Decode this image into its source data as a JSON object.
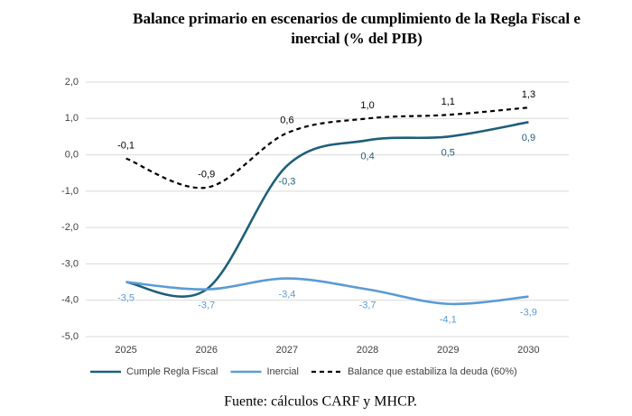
{
  "chart_data": {
    "type": "line",
    "title": "Balance primario en escenarios de cumplimiento de la Regla Fiscal e inercial (% del PIB)",
    "categories": [
      "2025",
      "2026",
      "2027",
      "2028",
      "2029",
      "2030"
    ],
    "series": [
      {
        "name": "Cumple Regla Fiscal",
        "color": "#1f5f7a",
        "dash": false,
        "values": [
          -3.5,
          -3.7,
          -0.3,
          0.4,
          0.5,
          0.9
        ],
        "value_labels": [
          null,
          null,
          "-0,3",
          "0,4",
          "0,5",
          "0,9"
        ]
      },
      {
        "name": "Inercial",
        "color": "#5b9bd5",
        "dash": false,
        "values": [
          -3.5,
          -3.7,
          -3.4,
          -3.7,
          -4.1,
          -3.9
        ],
        "value_labels": [
          "-3,5",
          "-3,7",
          "-3,4",
          "-3,7",
          "-4,1",
          "-3,9"
        ]
      },
      {
        "name": "Balance que estabiliza la deuda (60%)",
        "color": "#000000",
        "dash": true,
        "values": [
          -0.1,
          -0.9,
          0.6,
          1.0,
          1.1,
          1.3
        ],
        "value_labels": [
          "-0,1",
          "-0,9",
          "0,6",
          "1,0",
          "1,1",
          "1,3"
        ]
      }
    ],
    "ylim": [
      -5,
      2
    ],
    "yticks": [
      {
        "value": -5,
        "label": "-5,0"
      },
      {
        "value": -4,
        "label": "-4,0"
      },
      {
        "value": -3,
        "label": "-3,0"
      },
      {
        "value": -2,
        "label": "-2,0"
      },
      {
        "value": -1,
        "label": "-1,0"
      },
      {
        "value": 0,
        "label": "0,0"
      },
      {
        "value": 1,
        "label": "1,0"
      },
      {
        "value": 2,
        "label": "2,0"
      }
    ],
    "grid": true,
    "legend": "bottom",
    "source": "Fuente: cálculos CARF y MHCP."
  }
}
